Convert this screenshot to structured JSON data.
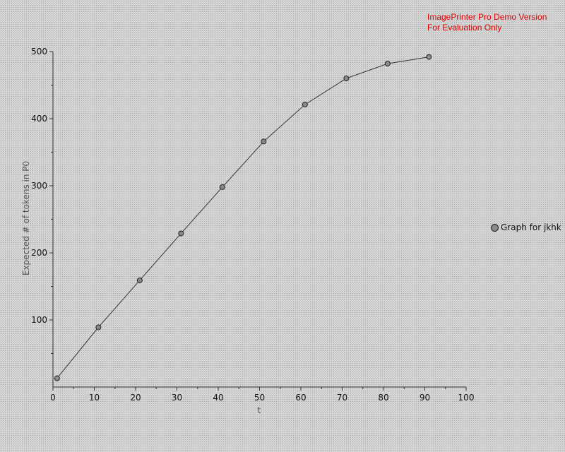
{
  "watermark": {
    "line1": "ImagePrinter Pro Demo Version",
    "line2": "For Evaluation Only",
    "color": "#e00000"
  },
  "legend": {
    "entries": [
      "Graph for jkhk"
    ],
    "placement": "right"
  },
  "chart_data": {
    "type": "line",
    "title": "",
    "xlabel": "t",
    "ylabel": "Expected # of tokens in P0",
    "xlim": [
      0,
      100
    ],
    "ylim": [
      0,
      500
    ],
    "xticks": [
      0,
      10,
      20,
      30,
      40,
      50,
      60,
      70,
      80,
      90,
      100
    ],
    "yticks": [
      100,
      200,
      300,
      400,
      500
    ],
    "grid": false,
    "series": [
      {
        "name": "Graph for jkhk",
        "x": [
          1,
          11,
          21,
          31,
          41,
          51,
          61,
          71,
          81,
          91
        ],
        "y": [
          13,
          89,
          159,
          229,
          298,
          366,
          421,
          460,
          482,
          492
        ]
      }
    ]
  }
}
